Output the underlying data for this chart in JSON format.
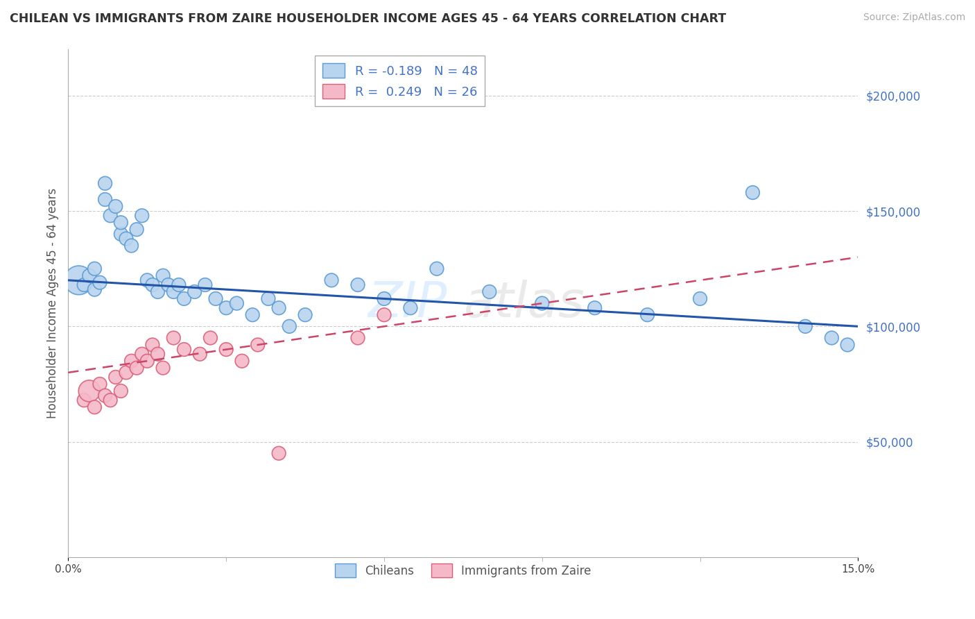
{
  "title": "CHILEAN VS IMMIGRANTS FROM ZAIRE HOUSEHOLDER INCOME AGES 45 - 64 YEARS CORRELATION CHART",
  "source": "Source: ZipAtlas.com",
  "ylabel": "Householder Income Ages 45 - 64 years",
  "xlim": [
    0.0,
    0.15
  ],
  "ylim": [
    0,
    220000
  ],
  "group1_label": "Chileans",
  "group2_label": "Immigrants from Zaire",
  "group1_color": "#b8d4ee",
  "group2_color": "#f5b8c8",
  "group1_edge": "#5b9bd5",
  "group2_edge": "#d9607a",
  "line1_color": "#2255aa",
  "line2_color": "#cc4466",
  "background_color": "#ffffff",
  "grid_color": "#cccccc",
  "legend_r1": "R = -0.189   N = 48",
  "legend_r2": "R =  0.249   N = 26",
  "chileans_x": [
    0.002,
    0.003,
    0.004,
    0.005,
    0.005,
    0.006,
    0.007,
    0.007,
    0.008,
    0.009,
    0.01,
    0.01,
    0.011,
    0.012,
    0.013,
    0.014,
    0.015,
    0.016,
    0.017,
    0.018,
    0.019,
    0.02,
    0.021,
    0.022,
    0.024,
    0.026,
    0.028,
    0.03,
    0.032,
    0.035,
    0.038,
    0.04,
    0.042,
    0.045,
    0.05,
    0.055,
    0.06,
    0.065,
    0.07,
    0.08,
    0.09,
    0.1,
    0.11,
    0.12,
    0.13,
    0.14,
    0.145,
    0.148
  ],
  "chileans_y": [
    120000,
    118000,
    122000,
    116000,
    125000,
    119000,
    155000,
    162000,
    148000,
    152000,
    140000,
    145000,
    138000,
    135000,
    142000,
    148000,
    120000,
    118000,
    115000,
    122000,
    118000,
    115000,
    118000,
    112000,
    115000,
    118000,
    112000,
    108000,
    110000,
    105000,
    112000,
    108000,
    100000,
    105000,
    120000,
    118000,
    112000,
    108000,
    125000,
    115000,
    110000,
    108000,
    105000,
    112000,
    158000,
    100000,
    95000,
    92000
  ],
  "chileans_sizes": [
    900,
    200,
    200,
    200,
    200,
    200,
    200,
    200,
    200,
    200,
    200,
    200,
    200,
    200,
    200,
    200,
    200,
    200,
    200,
    200,
    200,
    200,
    200,
    200,
    200,
    200,
    200,
    200,
    200,
    200,
    200,
    200,
    200,
    200,
    200,
    200,
    200,
    200,
    200,
    200,
    200,
    200,
    200,
    200,
    200,
    200,
    200,
    200
  ],
  "zaire_x": [
    0.003,
    0.004,
    0.005,
    0.006,
    0.007,
    0.008,
    0.009,
    0.01,
    0.011,
    0.012,
    0.013,
    0.014,
    0.015,
    0.016,
    0.017,
    0.018,
    0.02,
    0.022,
    0.025,
    0.027,
    0.03,
    0.033,
    0.036,
    0.04,
    0.055,
    0.06
  ],
  "zaire_y": [
    68000,
    72000,
    65000,
    75000,
    70000,
    68000,
    78000,
    72000,
    80000,
    85000,
    82000,
    88000,
    85000,
    92000,
    88000,
    82000,
    95000,
    90000,
    88000,
    95000,
    90000,
    85000,
    92000,
    45000,
    95000,
    105000
  ],
  "zaire_sizes": [
    200,
    500,
    200,
    200,
    200,
    200,
    200,
    200,
    200,
    200,
    200,
    200,
    200,
    200,
    200,
    200,
    200,
    200,
    200,
    200,
    200,
    200,
    200,
    200,
    200,
    200
  ]
}
